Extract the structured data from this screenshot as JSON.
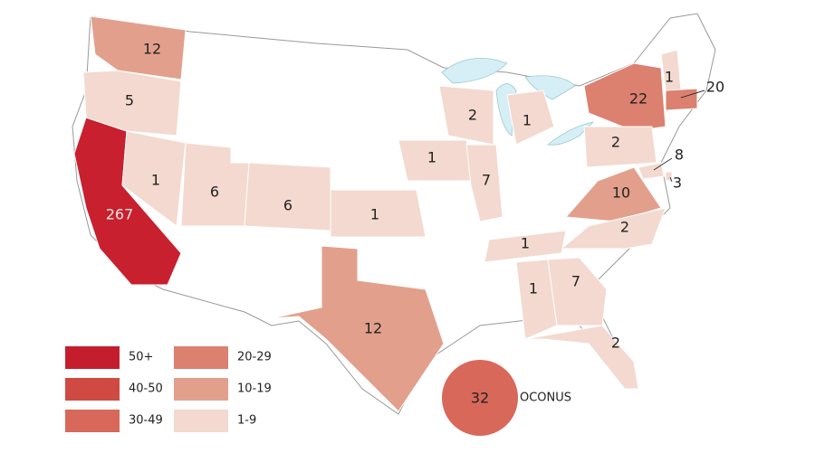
{
  "regions": [
    {
      "value": 267,
      "color": "#c8202f"
    },
    {
      "value": 12,
      "color": "#e2a08c"
    },
    {
      "value": 5,
      "color": "#f3d9cf"
    },
    {
      "value": 1,
      "color": "#f3d9cf"
    },
    {
      "value": 6,
      "color": "#f3d9cf"
    },
    {
      "value": 6,
      "color": "#f3d9cf"
    },
    {
      "value": 1,
      "color": "#f3d9cf"
    },
    {
      "value": 12,
      "color": "#e2a08c"
    },
    {
      "value": 1,
      "color": "#f3d9cf"
    },
    {
      "value": 7,
      "color": "#f3d9cf"
    },
    {
      "value": 2,
      "color": "#f3d9cf"
    },
    {
      "value": 1,
      "color": "#f3d9cf"
    },
    {
      "value": 22,
      "color": "#dc8070"
    },
    {
      "value": 1,
      "color": "#f3d9cf"
    },
    {
      "value": 20,
      "color": "#dc8070"
    },
    {
      "value": 2,
      "color": "#f3d9cf"
    },
    {
      "value": 10,
      "color": "#e2a08c"
    },
    {
      "value": 2,
      "color": "#f3d9cf"
    },
    {
      "value": 1,
      "color": "#f3d9cf"
    },
    {
      "value": 1,
      "color": "#f3d9cf"
    },
    {
      "value": 7,
      "color": "#f3d9cf"
    },
    {
      "value": 2,
      "color": "#f3d9cf"
    },
    {
      "value": 8,
      "color": "#f3d9cf"
    },
    {
      "value": 3,
      "color": "#f3d9cf"
    }
  ],
  "oconus": {
    "value": 32,
    "label": "OCONUS",
    "color": "#d8685a"
  },
  "legend": [
    {
      "label": "50+",
      "color": "#c41e2e"
    },
    {
      "label": "40-50",
      "color": "#cf4a42"
    },
    {
      "label": "30-49",
      "color": "#d8685a"
    },
    {
      "label": "20-29",
      "color": "#dc8070"
    },
    {
      "label": "10-19",
      "color": "#e2a08c"
    },
    {
      "label": "1-9",
      "color": "#f3d9cf"
    }
  ]
}
